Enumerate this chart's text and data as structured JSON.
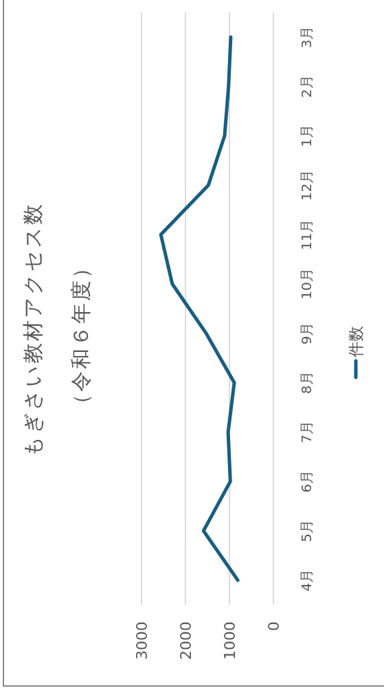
{
  "chart_data": {
    "type": "line",
    "title": "もぎさい教材アクセス数",
    "subtitle": "（令和６年度）",
    "categories": [
      "3月",
      "2月",
      "1月",
      "12月",
      "11月",
      "10月",
      "9月",
      "8月",
      "7月",
      "6月",
      "5月",
      "4月"
    ],
    "series": [
      {
        "name": "件数",
        "color": "#195e80",
        "values": [
          970,
          1020,
          1110,
          1480,
          2560,
          2300,
          1530,
          890,
          1030,
          980,
          1590,
          810
        ]
      }
    ],
    "orientation": "horizontal",
    "xlim": [
      3000,
      0
    ],
    "xticks": [
      0,
      1000,
      2000,
      3000
    ],
    "grid": "x",
    "legend": "bottom",
    "marker": "none"
  }
}
